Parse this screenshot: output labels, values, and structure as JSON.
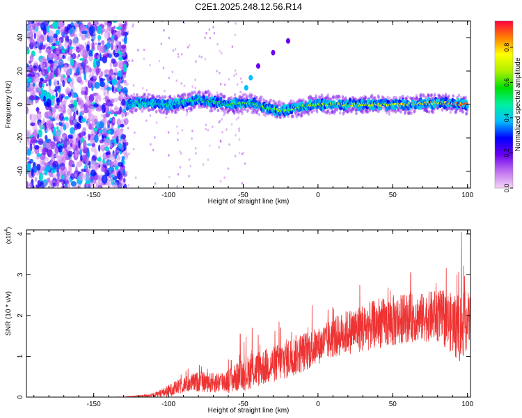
{
  "title": "C2E1.2025.248.12.56.R14",
  "chart_data": [
    {
      "type": "heatmap",
      "title": "C2E1.2025.248.12.56.R14",
      "xlabel": "Height of straight line (km)",
      "ylabel": "Frequency (Hz)",
      "xlim": [
        -195,
        102
      ],
      "ylim": [
        -50,
        50
      ],
      "xticks": [
        -150,
        -100,
        -50,
        0,
        50,
        100
      ],
      "yticks": [
        -40,
        -20,
        0,
        20,
        40
      ],
      "grid": false,
      "colorbar": {
        "label": "Normalized spectral amplitude",
        "range": [
          0.0,
          0.95
        ],
        "ticks": [
          0.0,
          0.2,
          0.4,
          0.6,
          0.8
        ],
        "colormap": [
          "#f5d6f5",
          "#c070f0",
          "#6a00f0",
          "#0000ff",
          "#00c0ff",
          "#00f0a0",
          "#00e000",
          "#b0f000",
          "#ffff00",
          "#ff8000",
          "#ff0040"
        ]
      },
      "features": {
        "noise_region_x": [
          -195,
          -128
        ],
        "main_trace": [
          [
            -128,
            0
          ],
          [
            -120,
            1
          ],
          [
            -100,
            0
          ],
          [
            -80,
            3
          ],
          [
            -60,
            0
          ],
          [
            -45,
            1
          ],
          [
            -35,
            -2
          ],
          [
            -25,
            -4
          ],
          [
            -10,
            -1
          ],
          [
            0,
            0
          ],
          [
            20,
            0
          ],
          [
            40,
            0
          ],
          [
            60,
            0
          ],
          [
            80,
            1
          ],
          [
            100,
            0
          ]
        ],
        "branch_points": [
          [
            -48,
            10
          ],
          [
            -45,
            16
          ],
          [
            -40,
            23
          ],
          [
            -30,
            31
          ],
          [
            -20,
            38
          ]
        ]
      }
    },
    {
      "type": "line",
      "xlabel": "Height of straight line (km)",
      "ylabel": "SNR (10 * v/v)",
      "y_multiplier_label": "(x10",
      "y_multiplier_exp": "4",
      "y_multiplier_close": ")",
      "xlim": [
        -195,
        102
      ],
      "ylim": [
        0,
        4.1
      ],
      "xticks": [
        -150,
        -100,
        -50,
        0,
        50,
        100
      ],
      "yticks": [
        0,
        1,
        2,
        3,
        4
      ],
      "grid": false,
      "series": [
        {
          "name": "SNR",
          "color": "#ee3333",
          "envelope_x": [
            -195,
            -130,
            -120,
            -110,
            -100,
            -90,
            -80,
            -70,
            -60,
            -50,
            -40,
            -30,
            -20,
            -10,
            0,
            10,
            20,
            30,
            40,
            50,
            60,
            70,
            80,
            90,
            95,
            100,
            102
          ],
          "envelope_mean": [
            0.0,
            0.0,
            0.02,
            0.05,
            0.15,
            0.3,
            0.38,
            0.35,
            0.4,
            0.55,
            0.7,
            0.8,
            0.95,
            1.1,
            1.25,
            1.45,
            1.6,
            1.7,
            1.8,
            1.85,
            1.95,
            1.95,
            2.0,
            1.8,
            1.7,
            1.9,
            1.9
          ],
          "envelope_spread": [
            0.0,
            0.005,
            0.02,
            0.05,
            0.15,
            0.2,
            0.25,
            0.25,
            0.3,
            0.4,
            0.45,
            0.45,
            0.5,
            0.5,
            0.45,
            0.5,
            0.55,
            0.6,
            0.6,
            0.65,
            0.6,
            0.6,
            0.65,
            0.75,
            0.9,
            0.7,
            0.6
          ],
          "peaks": [
            [
              -78,
              0.75
            ],
            [
              -58,
              0.9
            ],
            [
              -52,
              1.55
            ],
            [
              -44,
              1.7
            ],
            [
              -26,
              1.85
            ],
            [
              -25,
              1.7
            ],
            [
              28,
              2.75
            ],
            [
              62,
              3.05
            ],
            [
              79,
              2.8
            ],
            [
              93,
              3.0
            ],
            [
              96,
              4.05
            ]
          ]
        }
      ]
    }
  ]
}
